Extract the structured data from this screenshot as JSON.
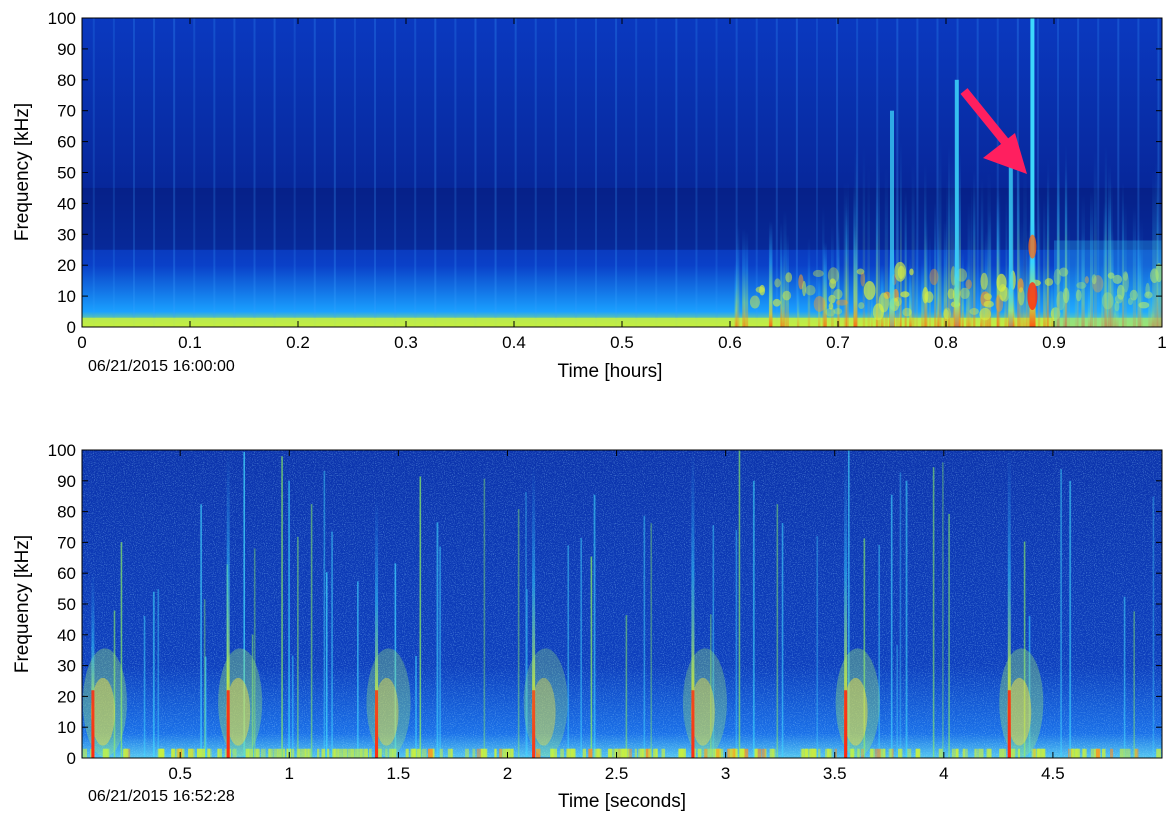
{
  "chart_data": [
    {
      "type": "heatmap",
      "xlabel": "Time [hours]",
      "ylabel": "Frequency [kHz]",
      "start_timestamp": "06/21/2015 16:00:00",
      "xlim": [
        0,
        1
      ],
      "ylim": [
        0,
        100
      ],
      "xticks": [
        0,
        0.1,
        0.2,
        0.3,
        0.4,
        0.5,
        0.6,
        0.7,
        0.8,
        0.9,
        1
      ],
      "xtick_labels": [
        "0",
        "0.1",
        "0.2",
        "0.3",
        "0.4",
        "0.5",
        "0.6",
        "0.7",
        "0.8",
        "0.9",
        "1"
      ],
      "yticks": [
        0,
        10,
        20,
        30,
        40,
        50,
        60,
        70,
        80,
        90,
        100
      ],
      "ytick_labels": [
        "0",
        "10",
        "20",
        "30",
        "40",
        "50",
        "60",
        "70",
        "80",
        "90",
        "100"
      ],
      "colormap": "jet",
      "background_color": "#0a2ea8",
      "low_band_color": "#c8f040",
      "annotation": {
        "type": "arrow",
        "color": "#ff1f5f",
        "points_to_time": 0.88,
        "points_to_frequency": 48
      },
      "events": [
        {
          "time": 0.75,
          "max_frequency": 70,
          "strength": 0.5
        },
        {
          "time": 0.81,
          "max_frequency": 80,
          "strength": 0.7
        },
        {
          "time": 0.86,
          "max_frequency": 60,
          "strength": 0.6
        },
        {
          "time": 0.88,
          "max_frequency": 100,
          "strength": 1.0
        }
      ]
    },
    {
      "type": "heatmap",
      "xlabel": "Time [seconds]",
      "ylabel": "Frequency [kHz]",
      "start_timestamp": "06/21/2015 16:52:28",
      "xlim": [
        0.05,
        5
      ],
      "ylim": [
        0,
        100
      ],
      "xticks": [
        0.5,
        1,
        1.5,
        2,
        2.5,
        3,
        3.5,
        4,
        4.5
      ],
      "xtick_labels": [
        "0.5",
        "1",
        "1.5",
        "2",
        "2.5",
        "3",
        "3.5",
        "4",
        "4.5"
      ],
      "yticks": [
        0,
        10,
        20,
        30,
        40,
        50,
        60,
        70,
        80,
        90,
        100
      ],
      "ytick_labels": [
        "0",
        "10",
        "20",
        "30",
        "40",
        "50",
        "60",
        "70",
        "80",
        "90",
        "100"
      ],
      "colormap": "jet",
      "background_color": "#0c33aa",
      "bursts": [
        {
          "time": 0.1,
          "max_frequency": 60,
          "strength": 1.0
        },
        {
          "time": 0.72,
          "max_frequency": 100,
          "strength": 1.0
        },
        {
          "time": 1.4,
          "max_frequency": 85,
          "strength": 0.9
        },
        {
          "time": 2.12,
          "max_frequency": 95,
          "strength": 0.8
        },
        {
          "time": 2.85,
          "max_frequency": 100,
          "strength": 0.9
        },
        {
          "time": 3.55,
          "max_frequency": 100,
          "strength": 1.0
        },
        {
          "time": 4.3,
          "max_frequency": 100,
          "strength": 1.0
        }
      ]
    }
  ]
}
